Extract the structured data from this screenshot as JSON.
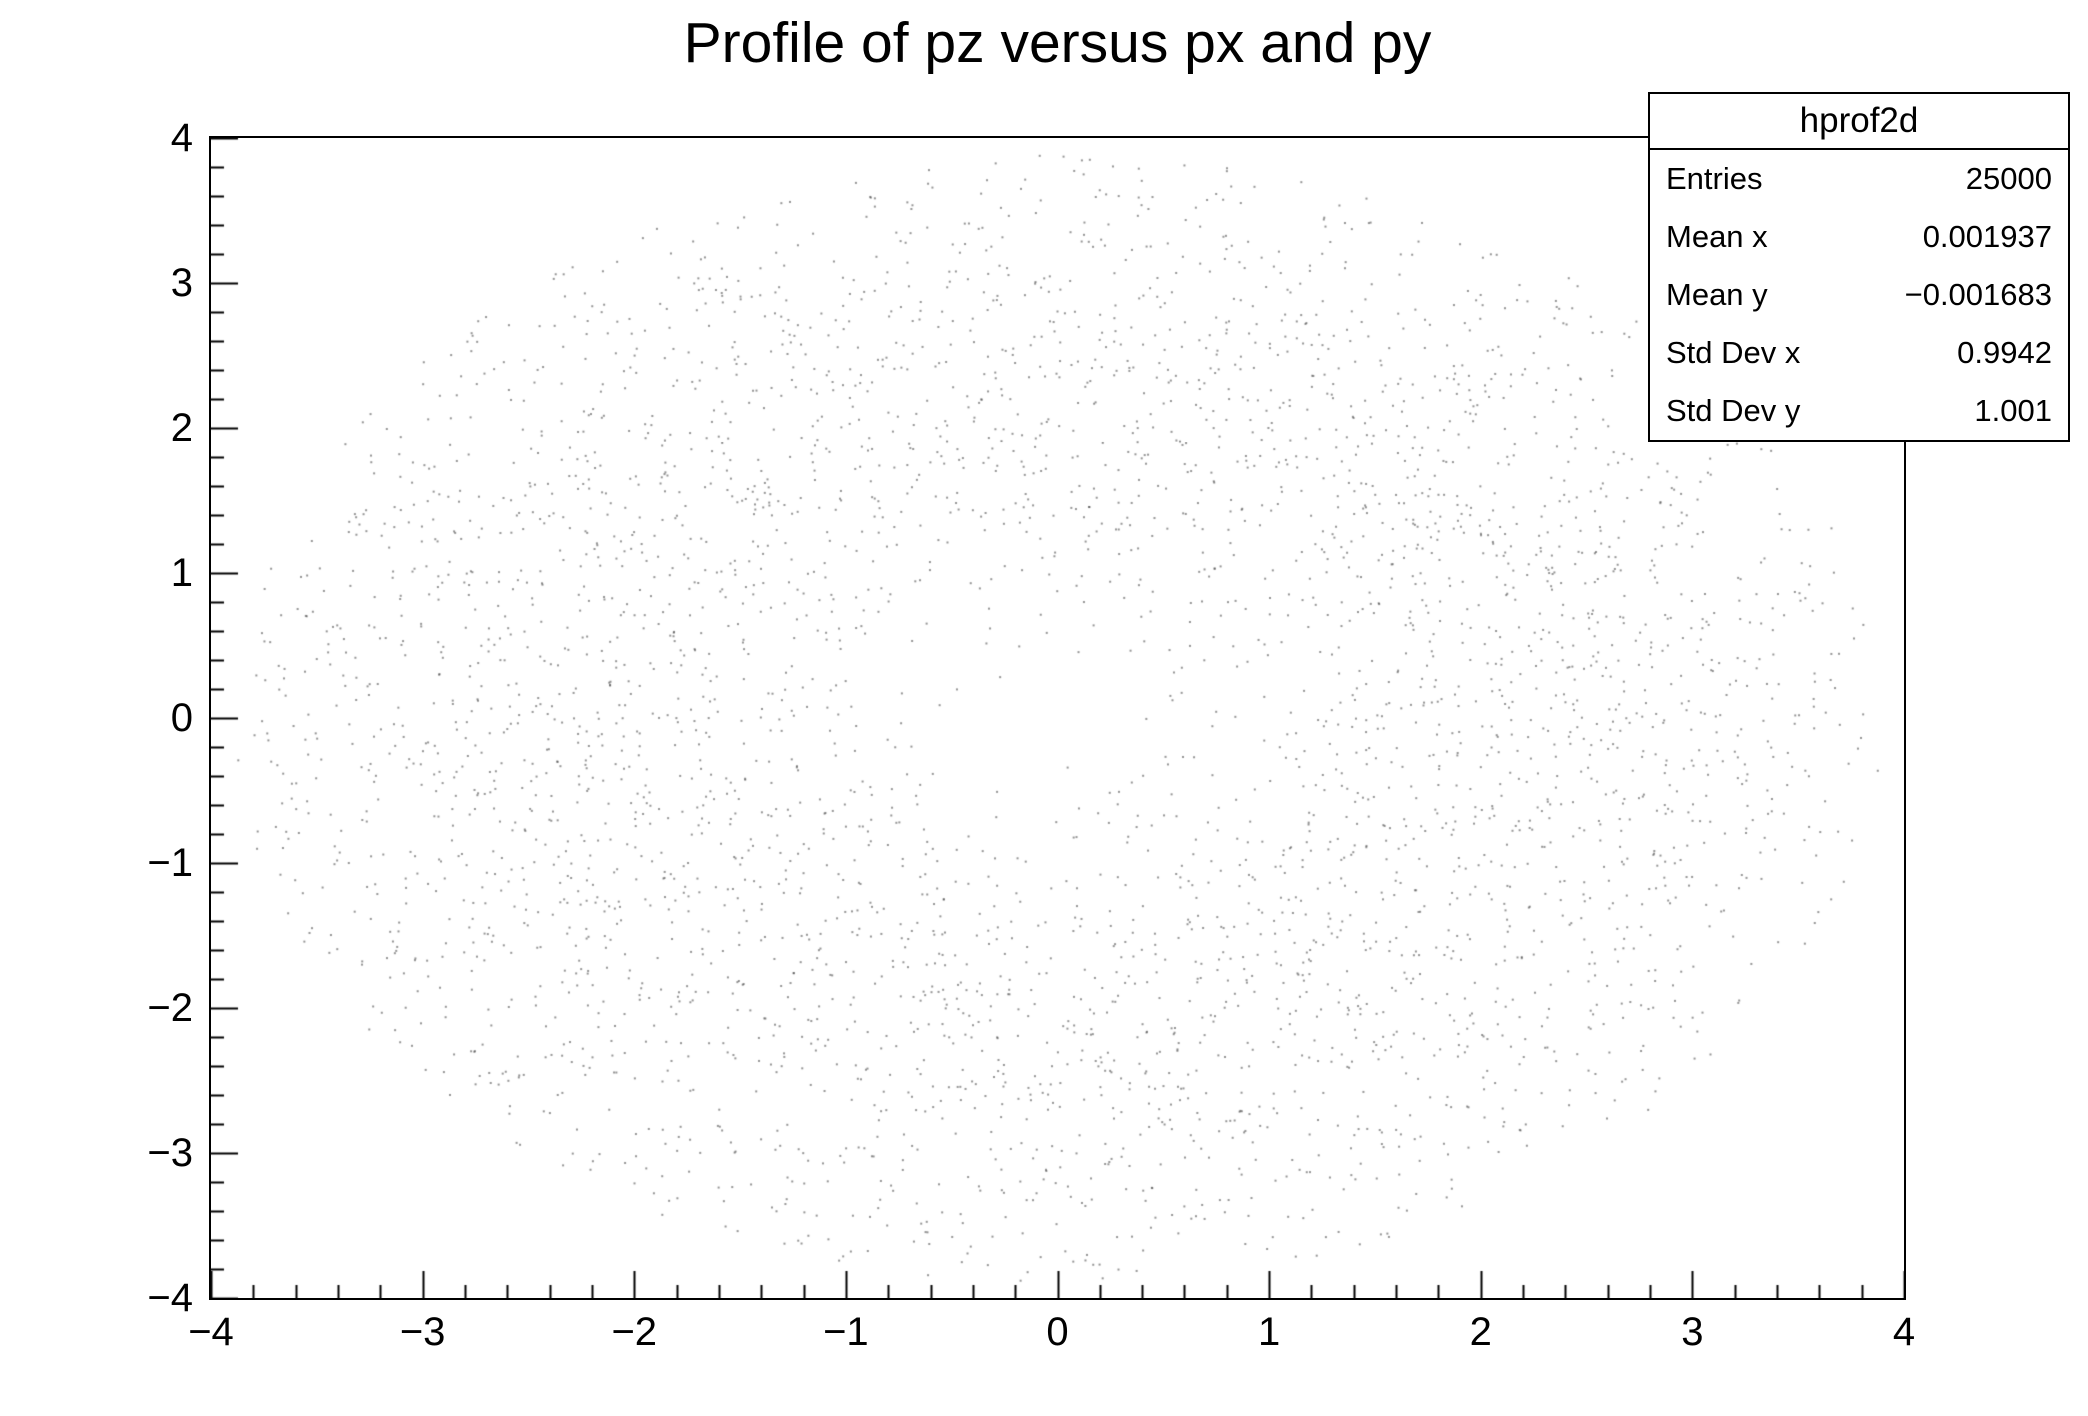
{
  "title": "Profile of pz versus px and py",
  "stats_box": {
    "title": "hprof2d",
    "rows": [
      {
        "label": "Entries",
        "value": "25000"
      },
      {
        "label": "Mean x",
        "value": "0.001937"
      },
      {
        "label": "Mean y",
        "value": "−0.001683"
      },
      {
        "label": "Std Dev x",
        "value": "0.9942"
      },
      {
        "label": "Std Dev y",
        "value": "1.001"
      }
    ]
  },
  "chart_data": {
    "type": "scatter",
    "title": "Profile of pz versus px and py",
    "xlabel": "",
    "ylabel": "",
    "xlim": [
      -4,
      4
    ],
    "ylim": [
      -4,
      4
    ],
    "grid": false,
    "legend": false,
    "x_tick_values": [
      -4,
      -3,
      -2,
      -1,
      0,
      1,
      2,
      3,
      4
    ],
    "x_tick_labels": [
      "−4",
      "−3",
      "−2",
      "−1",
      "0",
      "1",
      "2",
      "3",
      "4"
    ],
    "y_tick_values": [
      -4,
      -3,
      -2,
      -1,
      0,
      1,
      2,
      3,
      4
    ],
    "y_tick_labels": [
      "−4",
      "−3",
      "−2",
      "−1",
      "0",
      "1",
      "2",
      "3",
      "4"
    ],
    "minor_tick_step": 0.2,
    "histogram_name": "hprof2d",
    "entries": 25000,
    "mean_x": 0.001937,
    "mean_y": -0.001683,
    "std_dev_x": 0.9942,
    "std_dev_y": 1.001,
    "dot_cloud": {
      "description": "ROOT TProfile2D scatter draw: dot density proportional to bin content pz = px^2 + py^2 over Gaussian-filled bins; sparse at center, densest near r = 2.2, fading out to r = 3.9",
      "count": 4000,
      "seed": 424242,
      "r_max": 3.9,
      "density_k": 4.8,
      "dot_color": "rgba(60,60,60,0.55)",
      "dot_size": 2
    },
    "colors": {
      "axis": "#000000",
      "background": "#ffffff",
      "dots": "#8c8c8c"
    }
  }
}
